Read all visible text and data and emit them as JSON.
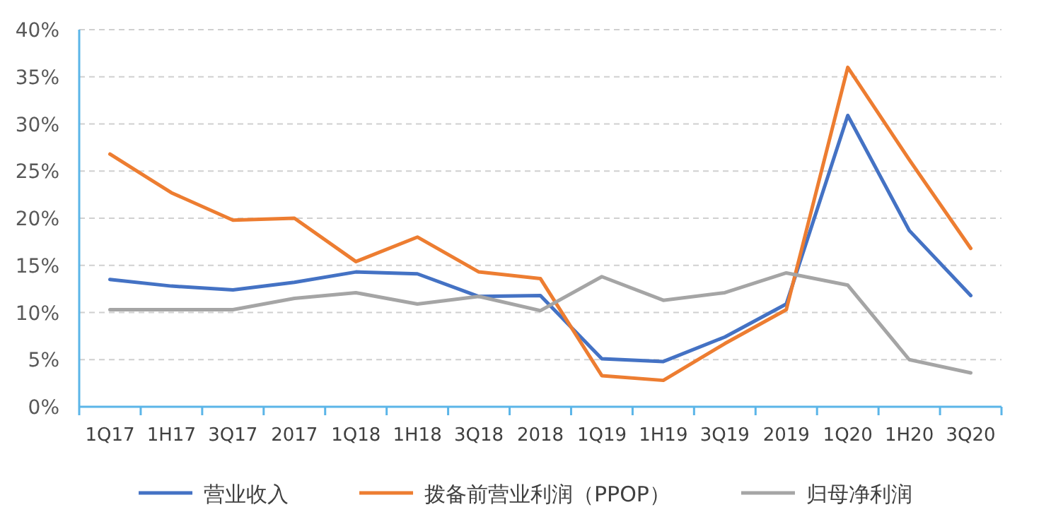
{
  "chart_data": {
    "type": "line",
    "categories": [
      "1Q17",
      "1H17",
      "3Q17",
      "2017",
      "1Q18",
      "1H18",
      "3Q18",
      "2018",
      "1Q19",
      "1H19",
      "3Q19",
      "2019",
      "1Q20",
      "1H20",
      "3Q20"
    ],
    "series": [
      {
        "name": "营业收入",
        "color": "#4472c4",
        "values": [
          13.5,
          12.8,
          12.4,
          13.2,
          14.3,
          14.1,
          11.7,
          11.8,
          5.1,
          4.8,
          7.4,
          10.9,
          30.9,
          18.7,
          11.8
        ]
      },
      {
        "name": "拨备前营业利润（PPOP）",
        "color": "#ed7d31",
        "values": [
          26.8,
          22.7,
          19.8,
          20,
          15.4,
          18,
          14.3,
          13.6,
          3.3,
          2.8,
          6.7,
          10.3,
          36,
          26.2,
          16.8
        ]
      },
      {
        "name": "归母净利润",
        "color": "#a5a5a5",
        "values": [
          10.3,
          10.3,
          10.3,
          11.5,
          12.1,
          10.9,
          11.7,
          10.2,
          13.8,
          11.3,
          12.1,
          14.2,
          12.9,
          5,
          3.6
        ]
      }
    ],
    "ylim": [
      0,
      40
    ],
    "yticks": [
      {
        "value": 0,
        "label": "0%"
      },
      {
        "value": 5,
        "label": "5%"
      },
      {
        "value": 10,
        "label": "10%"
      },
      {
        "value": 15,
        "label": "15%"
      },
      {
        "value": 20,
        "label": "20%"
      },
      {
        "value": 25,
        "label": "25%"
      },
      {
        "value": 30,
        "label": "30%"
      },
      {
        "value": 35,
        "label": "35%"
      },
      {
        "value": 40,
        "label": "40%"
      }
    ],
    "grid": "y",
    "legend": "bottom",
    "marker": "none",
    "line_style": "solid"
  }
}
